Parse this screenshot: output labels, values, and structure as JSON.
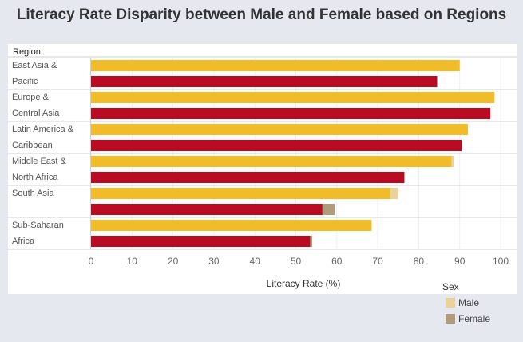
{
  "title": "Literacy Rate Disparity between Male and Female based on Regions",
  "chart_data": {
    "type": "bar",
    "orientation": "horizontal",
    "row_header": "Region",
    "categories": [
      [
        "East Asia &",
        "Pacific"
      ],
      [
        "Europe &",
        "Central Asia"
      ],
      [
        "Latin America &",
        "Caribbean"
      ],
      [
        "Middle East &",
        "North Africa"
      ],
      [
        "South Asia"
      ],
      [
        "Sub-Saharan",
        "Africa"
      ]
    ],
    "series": [
      {
        "name": "Male",
        "color": "#f0bc2a",
        "values": [
          90,
          98.5,
          92,
          88,
          73,
          68.5
        ],
        "highlight": [
          null,
          null,
          null,
          88.5,
          75,
          null
        ]
      },
      {
        "name": "Female",
        "color": "#b70c22",
        "values": [
          84.5,
          97.5,
          90.5,
          76.5,
          56.5,
          53.5
        ],
        "highlight": [
          null,
          null,
          null,
          null,
          59.5,
          54
        ]
      }
    ],
    "xlabel": "Literacy Rate (%)",
    "xlim": [
      0,
      100
    ],
    "xticks": [
      0,
      10,
      20,
      30,
      40,
      50,
      60,
      70,
      80,
      90,
      100
    ],
    "grid": "vertical",
    "legend": {
      "title": "Sex",
      "placement": "bottom-right"
    }
  }
}
